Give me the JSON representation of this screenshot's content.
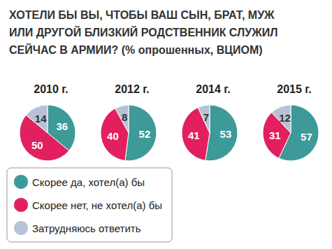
{
  "title": "ХОТЕЛИ БЫ ВЫ, ЧТОБЫ ВАШ СЫН, БРАТ, МУЖ\nИЛИ ДРУГОЙ БЛИЗКИЙ РОДСТВЕННИК СЛУЖИЛ\nСЕЙЧАС В АРМИИ? (% опрошенных, ВЦИОМ)",
  "chart_data": [
    {
      "type": "pie",
      "title": "2010 г.",
      "categories": [
        "Скорее да, хотел(а) бы",
        "Скорее нет, не хотел(а) бы",
        "Затрудняюсь ответить"
      ],
      "values": [
        36,
        50,
        14
      ],
      "colors": [
        "#3d9a98",
        "#e2205f",
        "#b7c2d6"
      ],
      "data_labels": true,
      "legend": "bottom-left"
    },
    {
      "type": "pie",
      "title": "2012 г.",
      "categories": [
        "Скорее да, хотел(а) бы",
        "Скорее нет, не хотел(а) бы",
        "Затрудняюсь ответить"
      ],
      "values": [
        52,
        40,
        8
      ],
      "colors": [
        "#3d9a98",
        "#e2205f",
        "#b7c2d6"
      ],
      "data_labels": true
    },
    {
      "type": "pie",
      "title": "2014 г.",
      "categories": [
        "Скорее да, хотел(а) бы",
        "Скорее нет, не хотел(а) бы",
        "Затрудняюсь ответить"
      ],
      "values": [
        53,
        41,
        7
      ],
      "colors": [
        "#3d9a98",
        "#e2205f",
        "#b7c2d6"
      ],
      "data_labels": true
    },
    {
      "type": "pie",
      "title": "2015 г.",
      "categories": [
        "Скорее да, хотел(а) бы",
        "Скорее нет, не хотел(а) бы",
        "Затрудняюсь ответить"
      ],
      "values": [
        57,
        31,
        12
      ],
      "colors": [
        "#3d9a98",
        "#e2205f",
        "#b7c2d6"
      ],
      "data_labels": true
    }
  ]
}
